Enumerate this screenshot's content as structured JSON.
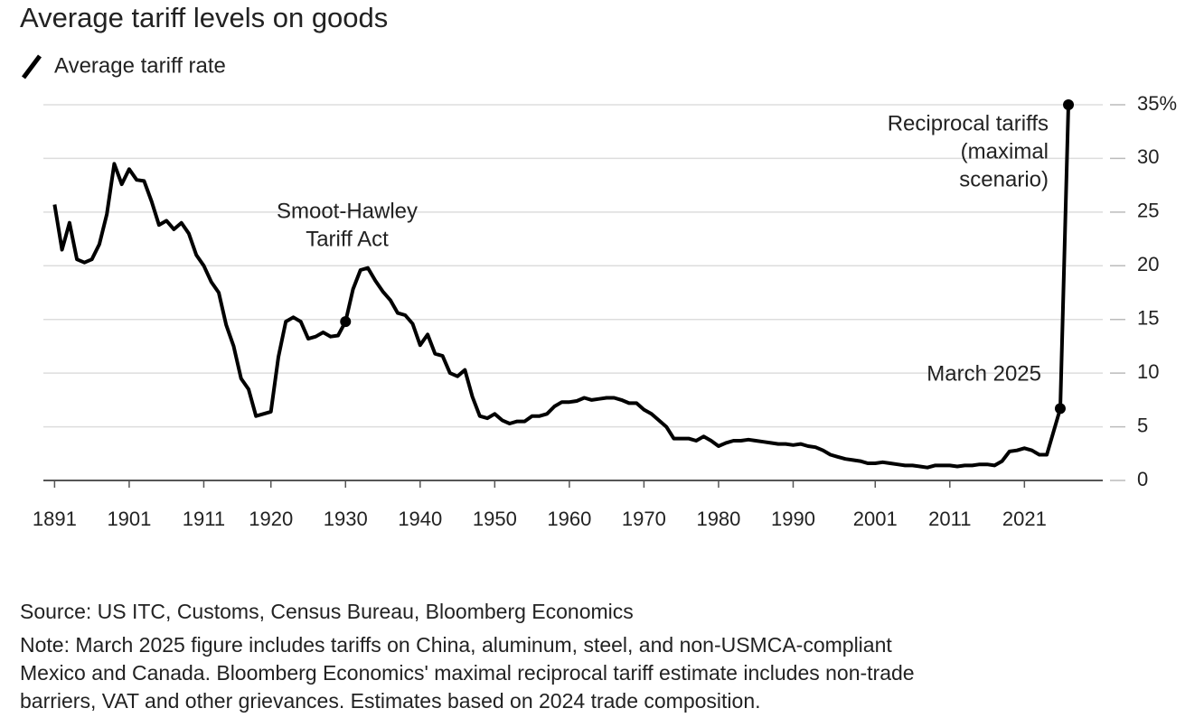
{
  "chart_data": {
    "type": "line",
    "title": "Average tariff levels on goods",
    "x": [
      1891,
      1892,
      1893,
      1894,
      1895,
      1896,
      1897,
      1898,
      1899,
      1900,
      1901,
      1902,
      1903,
      1904,
      1905,
      1906,
      1907,
      1908,
      1909,
      1910,
      1911,
      1912,
      1913,
      1914,
      1915,
      1916,
      1917,
      1918,
      1919,
      1920,
      1921,
      1922,
      1923,
      1924,
      1925,
      1926,
      1927,
      1928,
      1929,
      1930,
      1931,
      1932,
      1933,
      1934,
      1935,
      1936,
      1937,
      1938,
      1939,
      1940,
      1941,
      1942,
      1943,
      1944,
      1945,
      1946,
      1947,
      1948,
      1949,
      1950,
      1951,
      1952,
      1953,
      1954,
      1955,
      1956,
      1957,
      1958,
      1959,
      1960,
      1961,
      1962,
      1963,
      1964,
      1965,
      1966,
      1967,
      1968,
      1969,
      1970,
      1971,
      1972,
      1973,
      1974,
      1975,
      1976,
      1977,
      1978,
      1979,
      1980,
      1981,
      1982,
      1983,
      1984,
      1985,
      1986,
      1987,
      1988,
      1989,
      1990,
      1991,
      1992,
      1993,
      1994,
      1995,
      1996,
      1997,
      1998,
      1999,
      2000,
      2001,
      2002,
      2003,
      2004,
      2005,
      2006,
      2007,
      2008,
      2009,
      2010,
      2011,
      2012,
      2013,
      2014,
      2015,
      2016,
      2017,
      2018,
      2019,
      2020,
      2021,
      2022,
      2023,
      2024,
      2025.8,
      2026.9
    ],
    "series": [
      {
        "name": "Average tariff rate",
        "color": "#000000",
        "values": [
          25.7,
          21.5,
          24,
          20.6,
          20.3,
          20.6,
          22,
          24.8,
          29.5,
          27.6,
          29,
          28,
          27.9,
          26,
          23.8,
          24.2,
          23.4,
          24,
          23,
          21,
          20,
          18.5,
          17.5,
          14.5,
          12.5,
          9.5,
          8.5,
          6,
          6.2,
          6.4,
          11.5,
          14.8,
          15.2,
          14.8,
          13.2,
          13.4,
          13.8,
          13.4,
          13.5,
          14.8,
          17.8,
          19.6,
          19.8,
          18.6,
          17.6,
          16.8,
          15.6,
          15.4,
          14.6,
          12.6,
          13.6,
          11.8,
          11.6,
          10,
          9.7,
          10.3,
          7.8,
          6,
          5.8,
          6.2,
          5.6,
          5.3,
          5.5,
          5.5,
          6,
          6,
          6.2,
          6.9,
          7.3,
          7.3,
          7.4,
          7.7,
          7.5,
          7.6,
          7.7,
          7.7,
          7.5,
          7.2,
          7.2,
          6.6,
          6.2,
          5.6,
          5,
          3.9,
          3.9,
          3.9,
          3.7,
          4.1,
          3.7,
          3.2,
          3.5,
          3.7,
          3.7,
          3.8,
          3.7,
          3.6,
          3.5,
          3.4,
          3.4,
          3.3,
          3.4,
          3.2,
          3.1,
          2.8,
          2.4,
          2.2,
          2,
          1.9,
          1.8,
          1.6,
          1.6,
          1.7,
          1.6,
          1.5,
          1.4,
          1.4,
          1.3,
          1.2,
          1.4,
          1.4,
          1.4,
          1.3,
          1.4,
          1.4,
          1.5,
          1.5,
          1.4,
          1.8,
          2.7,
          2.8,
          3,
          2.8,
          2.4,
          2.4,
          6.7,
          35
        ]
      }
    ],
    "xlim": [
      1889.5,
      2031.5
    ],
    "xticks": [
      1891,
      1901,
      1911,
      1920,
      1930,
      1940,
      1950,
      1960,
      1970,
      1980,
      1990,
      2001,
      2011,
      2021
    ],
    "ylim": [
      0,
      35
    ],
    "yticks": [
      0,
      5,
      10,
      15,
      20,
      25,
      30,
      {
        "value": 35,
        "label": "35%"
      }
    ],
    "grid": true,
    "annotations": [
      {
        "text": [
          "Smoot-Hawley",
          "Tariff Act"
        ]
      },
      {
        "text": [
          "March 2025"
        ]
      },
      {
        "text": [
          "Reciprocal tariffs",
          "(maximal",
          "scenario)"
        ]
      }
    ],
    "source": "Source: US ITC, Customs, Census Bureau, Bloomberg Economics",
    "note": [
      "Note: March 2025 figure includes tariffs on China, aluminum, steel, and non-USMCA-compliant",
      "Mexico and Canada. Bloomberg Economics' maximal reciprocal tariff estimate includes non-trade",
      "barriers, VAT and other grievances. Estimates based on 2024 trade composition."
    ]
  }
}
